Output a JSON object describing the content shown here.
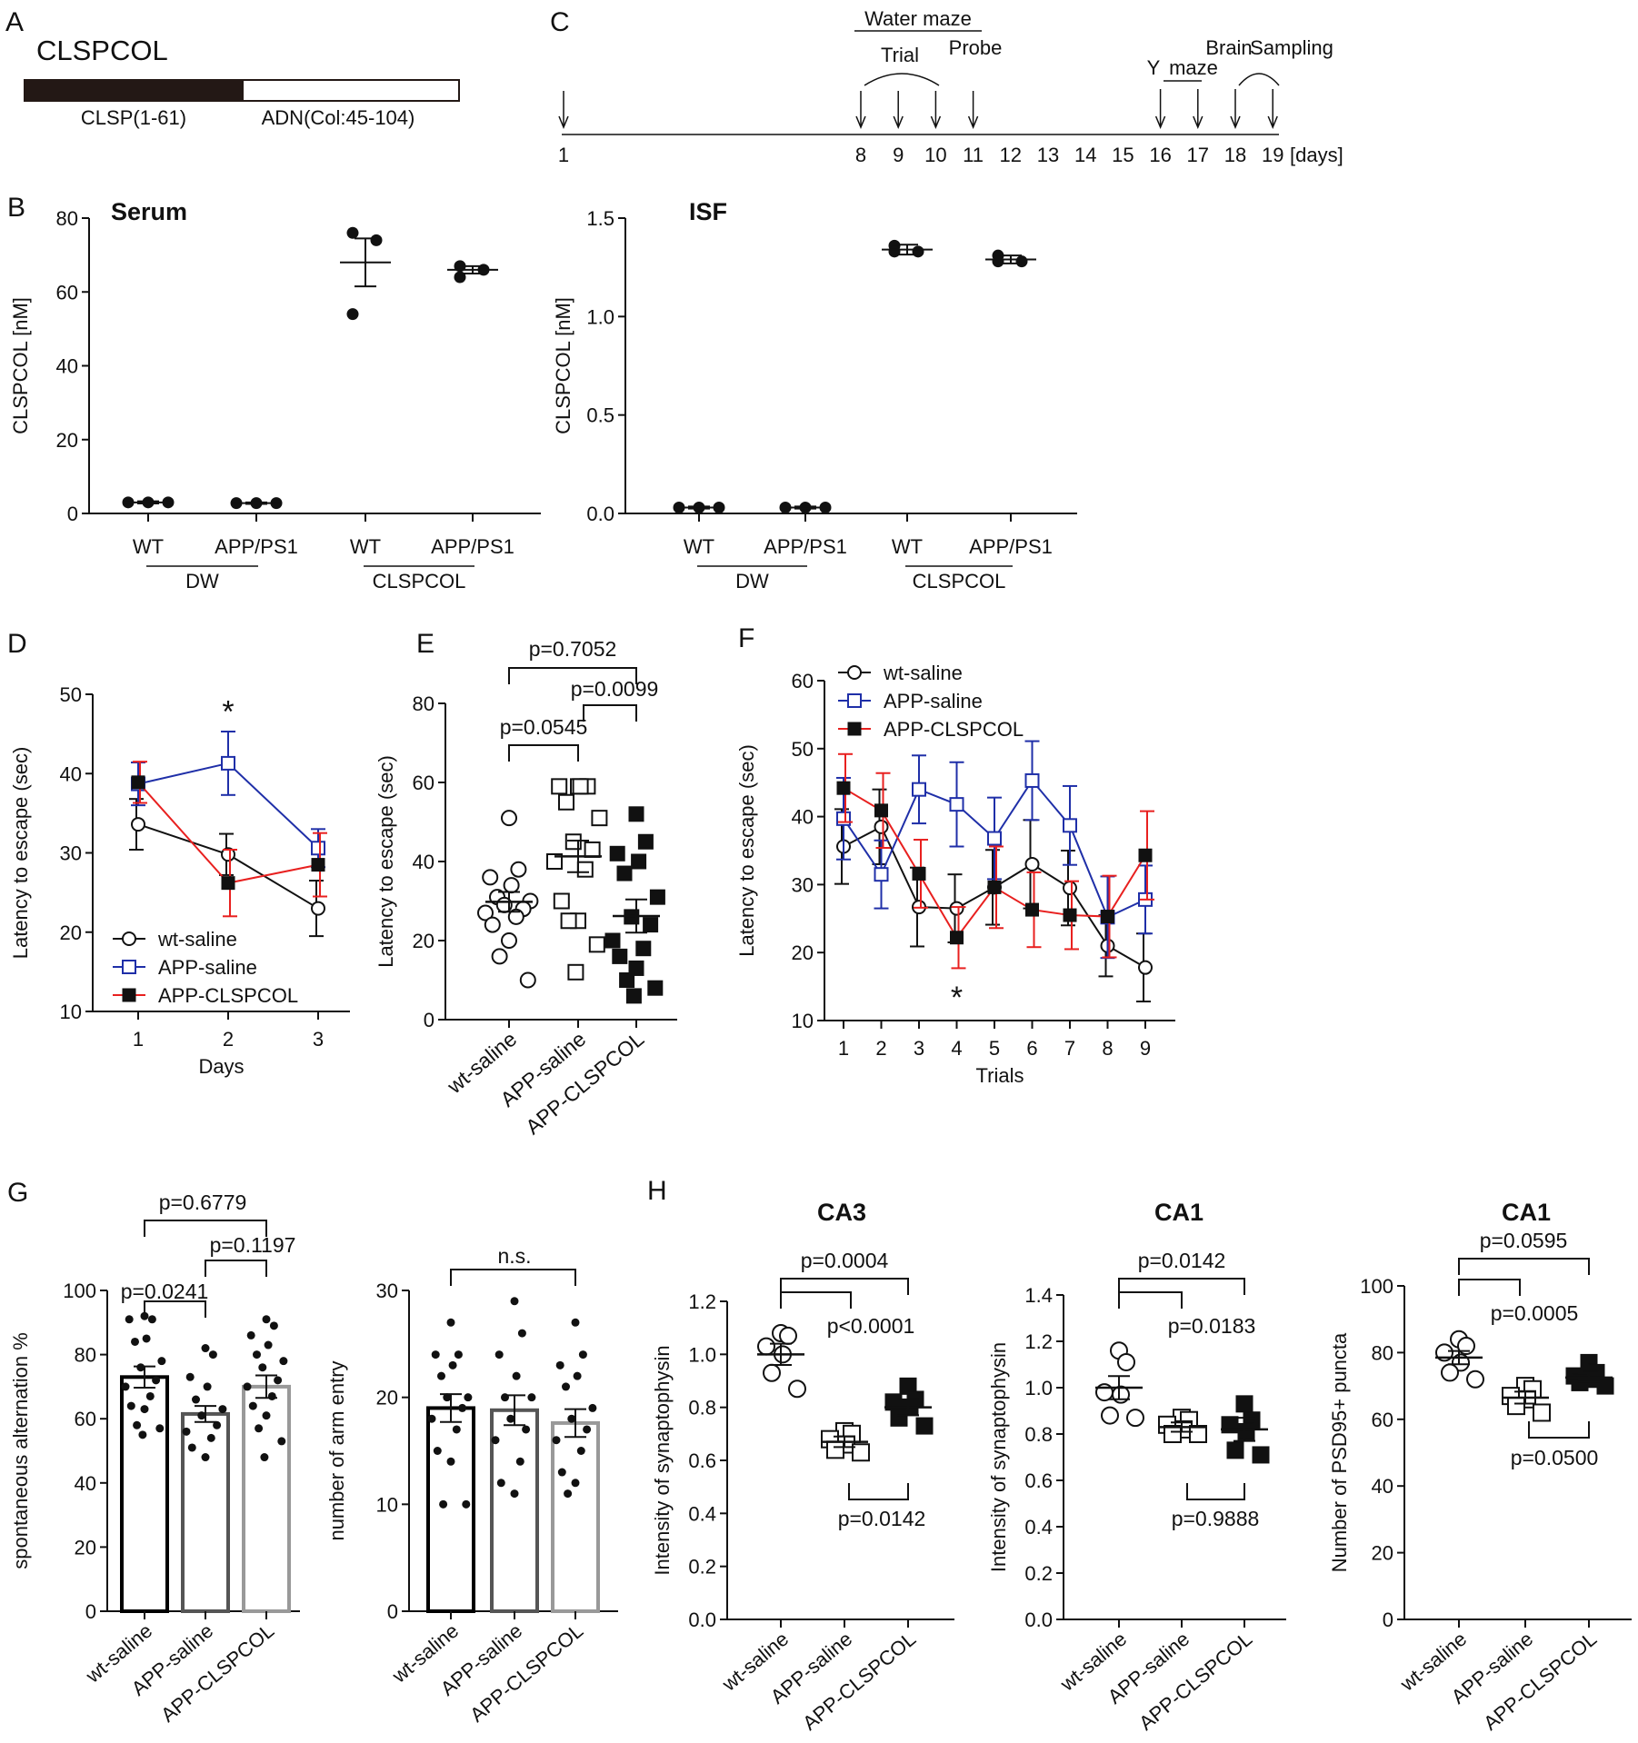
{
  "panel_labels": [
    "A",
    "B",
    "C",
    "D",
    "E",
    "F",
    "G",
    "H"
  ],
  "construct": {
    "name": "CLSPCOL",
    "segments": [
      {
        "label": "CLSP(1-61)",
        "style": "filled",
        "color": "#231815"
      },
      {
        "label": "ADN(Col:45-104)",
        "style": "open",
        "color": "#ffffff"
      }
    ]
  },
  "timeline": {
    "days": [
      1,
      8,
      9,
      10,
      11,
      12,
      13,
      14,
      15,
      16,
      17,
      18,
      19
    ],
    "unit": "[days]",
    "arrow_days": [
      1,
      8,
      9,
      10,
      11,
      16,
      17,
      18,
      19
    ],
    "labels": {
      "water_maze": "Water maze",
      "trial": "Trial",
      "probe": "Probe",
      "y": "Y",
      "maze": "maze",
      "brain": "Brain",
      "sampling": "Sampling"
    }
  },
  "chart_data": [
    {
      "id": "B1",
      "type": "scatter",
      "title": "Serum",
      "ylabel": "CLSPCOL [nM]",
      "ylim": [
        0,
        80
      ],
      "yticks": [
        "0",
        "20",
        "40",
        "60",
        "80"
      ],
      "categories": [
        "WT",
        "APP/PS1",
        "WT",
        "APP/PS1"
      ],
      "group_labels": [
        "DW",
        "CLSPCOL"
      ],
      "groups": [
        {
          "points": [
            3,
            3,
            3
          ],
          "mean": 3,
          "sem": 0.3
        },
        {
          "points": [
            2.8,
            2.8,
            2.8
          ],
          "mean": 2.8,
          "sem": 0.2
        },
        {
          "points": [
            76,
            74,
            54
          ],
          "mean": 68,
          "sem": 6.5
        },
        {
          "points": [
            67,
            66,
            64
          ],
          "mean": 66,
          "sem": 1
        }
      ]
    },
    {
      "id": "B2",
      "type": "scatter",
      "title": "ISF",
      "ylabel": "CLSPCOL [nM]",
      "ylim": [
        0,
        1.5
      ],
      "yticks": [
        "0.0",
        "0.5",
        "1.0",
        "1.5"
      ],
      "categories": [
        "WT",
        "APP/PS1",
        "WT",
        "APP/PS1"
      ],
      "group_labels": [
        "DW",
        "CLSPCOL"
      ],
      "groups": [
        {
          "points": [
            0.03,
            0.03,
            0.03
          ],
          "mean": 0.03,
          "sem": 0.005
        },
        {
          "points": [
            0.03,
            0.03,
            0.03
          ],
          "mean": 0.03,
          "sem": 0.005
        },
        {
          "points": [
            1.36,
            1.33,
            1.33
          ],
          "mean": 1.34,
          "sem": 0.025
        },
        {
          "points": [
            1.31,
            1.28,
            1.28
          ],
          "mean": 1.29,
          "sem": 0.02
        }
      ]
    },
    {
      "id": "D",
      "type": "line",
      "xlabel": "Days",
      "ylabel": "Latency to escape (sec)",
      "ylim": [
        10,
        50
      ],
      "yticks": [
        "10",
        "20",
        "30",
        "40",
        "50"
      ],
      "x": [
        1,
        2,
        3
      ],
      "star": "*",
      "star_x": 2,
      "series": [
        {
          "name": "wt-saline",
          "color": "#111111",
          "marker": "open-circle",
          "values": [
            33.6,
            29.8,
            23
          ],
          "err": [
            3.2,
            2.6,
            3.5
          ]
        },
        {
          "name": "APP-saline",
          "color": "#1f2fa8",
          "marker": "open-square",
          "values": [
            38.7,
            41.3,
            30.6
          ],
          "err": [
            2.7,
            4,
            2.4
          ]
        },
        {
          "name": "APP-CLSPCOL",
          "color": "#e8201f",
          "marker": "filled-square",
          "values": [
            38.9,
            26.2,
            28.5
          ],
          "err": [
            2.6,
            4.2,
            4
          ]
        }
      ]
    },
    {
      "id": "E",
      "type": "scatter",
      "ylabel": "Latency to escape (sec)",
      "ylim": [
        0,
        80
      ],
      "yticks": [
        "0",
        "20",
        "40",
        "60",
        "80"
      ],
      "categories": [
        "wt-saline",
        "APP-saline",
        "APP-CLSPCOL"
      ],
      "comparisons": [
        "p=0.7052",
        "p=0.0545",
        "p=0.0099"
      ],
      "groups": [
        {
          "marker": "open-circle",
          "mean": 29.8,
          "sem": 2.5,
          "points": [
            51,
            38,
            36,
            34,
            31,
            30,
            29,
            28,
            27,
            26,
            24,
            20,
            16,
            10
          ]
        },
        {
          "marker": "open-square",
          "mean": 41.3,
          "sem": 4,
          "points": [
            59,
            59,
            59,
            59,
            55,
            51,
            45,
            43,
            40,
            38,
            30,
            25,
            25,
            19,
            12
          ]
        },
        {
          "marker": "filled-square",
          "mean": 26.2,
          "sem": 4.2,
          "points": [
            52,
            45,
            42,
            40,
            37,
            31,
            26,
            24,
            20,
            18,
            16,
            13,
            10,
            8,
            6
          ]
        }
      ]
    },
    {
      "id": "F",
      "type": "line",
      "xlabel": "Trials",
      "ylabel": "Latency to escape (sec)",
      "ylim": [
        10,
        60
      ],
      "yticks": [
        "10",
        "20",
        "30",
        "40",
        "50",
        "60"
      ],
      "x": [
        1,
        2,
        3,
        4,
        5,
        6,
        7,
        8,
        9
      ],
      "star": "*",
      "star_x": 4,
      "series": [
        {
          "name": "wt-saline",
          "color": "#111111",
          "marker": "open-circle",
          "values": [
            35.6,
            38.5,
            26.7,
            26.5,
            29.6,
            33,
            29.5,
            21,
            17.8
          ],
          "err": [
            5.5,
            5.5,
            5.8,
            5,
            5.5,
            6.5,
            5.5,
            4.5,
            5
          ]
        },
        {
          "name": "APP-saline",
          "color": "#1f2fa8",
          "marker": "open-square",
          "values": [
            39.7,
            31.5,
            44,
            41.8,
            36.8,
            45.3,
            38.7,
            25.2,
            27.8
          ],
          "err": [
            6,
            5,
            5,
            6.2,
            6,
            5.8,
            5.8,
            6,
            5
          ]
        },
        {
          "name": "APP-CLSPCOL",
          "color": "#e8201f",
          "marker": "filled-square",
          "values": [
            44.2,
            40.9,
            31.6,
            22.2,
            29.6,
            26.3,
            25.5,
            25.3,
            34.3
          ],
          "err": [
            5,
            5.5,
            5,
            4.5,
            6,
            5.5,
            5,
            6,
            6.5
          ]
        }
      ]
    },
    {
      "id": "G1",
      "type": "bar",
      "ylabel": "spontaneous alternation %",
      "ylim": [
        0,
        100
      ],
      "yticks": [
        "0",
        "20",
        "40",
        "60",
        "80",
        "100"
      ],
      "categories": [
        "wt-saline",
        "APP-saline",
        "APP-CLSPCOL"
      ],
      "comparisons": [
        "p=0.6779",
        "p=0.0241",
        "p=0.1197"
      ],
      "groups": [
        {
          "value": 73,
          "sem": 3.3,
          "bar_color": "#000000",
          "points": [
            92,
            91,
            91,
            85,
            84,
            78,
            76,
            72,
            70,
            67,
            64,
            63,
            58,
            57,
            55
          ]
        },
        {
          "value": 61.5,
          "sem": 2.5,
          "bar_color": "#555555",
          "points": [
            82,
            80,
            73,
            70,
            66,
            63,
            61,
            58,
            56,
            54,
            51,
            48
          ]
        },
        {
          "value": 70,
          "sem": 3.5,
          "bar_color": "#999999",
          "points": [
            91,
            89,
            86,
            83,
            80,
            78,
            76,
            72,
            70,
            67,
            64,
            61,
            57,
            53,
            48
          ]
        }
      ]
    },
    {
      "id": "G2",
      "type": "bar",
      "ylabel": "number of arm entry",
      "ylim": [
        0,
        30
      ],
      "yticks": [
        "0",
        "10",
        "20",
        "30"
      ],
      "categories": [
        "wt-saline",
        "APP-saline",
        "APP-CLSPCOL"
      ],
      "comparisons": [
        "n.s."
      ],
      "groups": [
        {
          "value": 19,
          "sem": 1.3,
          "bar_color": "#000000",
          "points": [
            27,
            24,
            24,
            23,
            22,
            20,
            20,
            19,
            18,
            17,
            15,
            14,
            10,
            10
          ]
        },
        {
          "value": 18.8,
          "sem": 1.4,
          "bar_color": "#555555",
          "points": [
            29,
            26,
            24,
            22,
            20,
            20,
            18,
            17,
            16,
            14,
            12,
            11
          ]
        },
        {
          "value": 17.6,
          "sem": 1.3,
          "bar_color": "#999999",
          "points": [
            27,
            24,
            23,
            22,
            21,
            19,
            18,
            17,
            16,
            15,
            13,
            12,
            11
          ]
        }
      ]
    },
    {
      "id": "H1",
      "type": "scatter",
      "title": "CA3",
      "ylabel": "Intensity of synaptophysin",
      "ylim": [
        0,
        1.2
      ],
      "yticks": [
        "0.0",
        "0.2",
        "0.4",
        "0.6",
        "0.8",
        "1.0",
        "1.2"
      ],
      "categories": [
        "wt-saline",
        "APP-saline",
        "APP-CLSPCOL"
      ],
      "comparisons": [
        "p=0.0004",
        "p<0.0001",
        "p=0.0142"
      ],
      "groups": [
        {
          "marker": "open-circle",
          "mean": 1.0,
          "sem": 0.04,
          "points": [
            1.08,
            1.07,
            1.03,
            1.0,
            0.93,
            0.87
          ]
        },
        {
          "marker": "open-square",
          "mean": 0.67,
          "sem": 0.02,
          "points": [
            0.71,
            0.7,
            0.68,
            0.66,
            0.64,
            0.63
          ]
        },
        {
          "marker": "filled-square",
          "mean": 0.8,
          "sem": 0.03,
          "points": [
            0.88,
            0.83,
            0.82,
            0.8,
            0.76,
            0.73
          ]
        }
      ]
    },
    {
      "id": "H2",
      "type": "scatter",
      "title": "CA1",
      "ylabel": "Intensity of synaptophysin",
      "ylim": [
        0,
        1.4
      ],
      "yticks": [
        "0.0",
        "0.2",
        "0.4",
        "0.6",
        "0.8",
        "1.0",
        "1.2",
        "1.4"
      ],
      "categories": [
        "wt-saline",
        "APP-saline",
        "APP-CLSPCOL"
      ],
      "comparisons": [
        "p=0.0142",
        "p=0.0183",
        "p=0.9888"
      ],
      "groups": [
        {
          "marker": "open-circle",
          "mean": 1.0,
          "sem": 0.05,
          "points": [
            1.16,
            1.11,
            0.98,
            0.97,
            0.88,
            0.87
          ]
        },
        {
          "marker": "open-square",
          "mean": 0.83,
          "sem": 0.02,
          "points": [
            0.87,
            0.86,
            0.84,
            0.82,
            0.8,
            0.8
          ]
        },
        {
          "marker": "filled-square",
          "mean": 0.82,
          "sem": 0.05,
          "points": [
            0.93,
            0.86,
            0.84,
            0.81,
            0.73,
            0.71
          ]
        }
      ]
    },
    {
      "id": "H3",
      "type": "scatter",
      "title": "CA1",
      "ylabel": "Number of PSD95+ puncta",
      "ylim": [
        0,
        100
      ],
      "yticks": [
        "0",
        "20",
        "40",
        "60",
        "80",
        "100"
      ],
      "categories": [
        "wt-saline",
        "APP-saline",
        "APP-CLSPCOL"
      ],
      "comparisons": [
        "p=0.0595",
        "p=0.0005",
        "p=0.0500"
      ],
      "groups": [
        {
          "marker": "open-circle",
          "mean": 78.5,
          "sem": 2,
          "points": [
            84,
            82,
            80,
            77,
            74,
            72
          ]
        },
        {
          "marker": "open-square",
          "mean": 66.5,
          "sem": 1.8,
          "points": [
            70,
            69,
            67,
            66,
            64,
            62
          ]
        },
        {
          "marker": "filled-square",
          "mean": 72.5,
          "sem": 1.2,
          "points": [
            77,
            74,
            73,
            72,
            71,
            70
          ]
        }
      ]
    }
  ]
}
